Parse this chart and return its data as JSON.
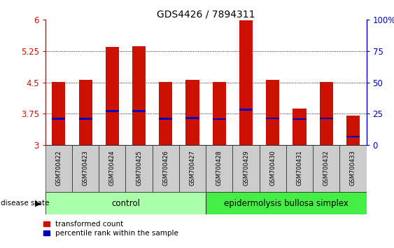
{
  "title": "GDS4426 / 7894311",
  "samples": [
    "GSM700422",
    "GSM700423",
    "GSM700424",
    "GSM700425",
    "GSM700426",
    "GSM700427",
    "GSM700428",
    "GSM700429",
    "GSM700430",
    "GSM700431",
    "GSM700432",
    "GSM700433"
  ],
  "bar_values": [
    4.51,
    4.56,
    5.35,
    5.37,
    4.52,
    4.57,
    4.51,
    5.99,
    4.56,
    3.87,
    4.51,
    3.7
  ],
  "blue_values": [
    3.63,
    3.63,
    3.82,
    3.82,
    3.63,
    3.65,
    3.62,
    3.85,
    3.64,
    3.62,
    3.64,
    3.2
  ],
  "ymin": 3.0,
  "ymax": 6.0,
  "yticks": [
    3.0,
    3.75,
    4.5,
    5.25,
    6.0
  ],
  "ytick_labels": [
    "3",
    "3.75",
    "4.5",
    "5.25",
    "6"
  ],
  "right_ytick_vals": [
    3.0,
    3.75,
    4.5,
    5.25,
    6.0
  ],
  "right_ytick_labels": [
    "0",
    "25",
    "50",
    "75",
    "100%"
  ],
  "bar_color": "#CC1100",
  "blue_color": "#0000BB",
  "bar_width": 0.5,
  "control_samples": 6,
  "control_label": "control",
  "disease_label": "epidermolysis bullosa simplex",
  "disease_state_label": "disease state",
  "legend_bar_label": "transformed count",
  "legend_blue_label": "percentile rank within the sample",
  "control_color": "#AAFFAA",
  "disease_color": "#44EE44",
  "tick_area_color": "#CCCCCC",
  "figsize": [
    5.63,
    3.54
  ],
  "dpi": 100
}
